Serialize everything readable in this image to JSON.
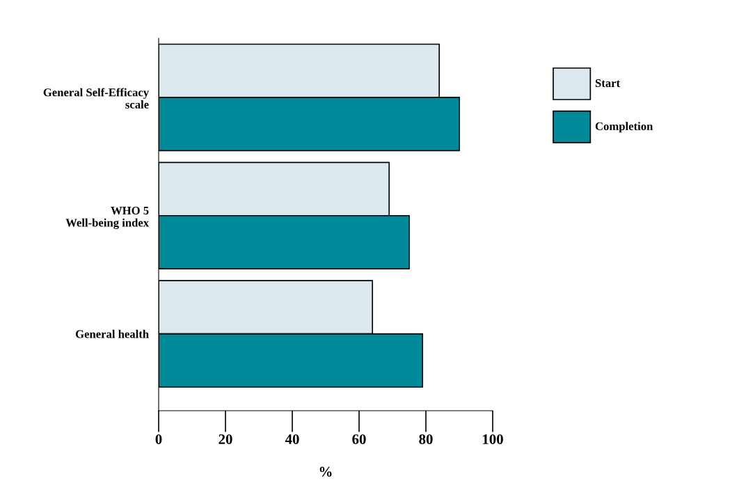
{
  "chart_data": {
    "type": "bar",
    "orientation": "horizontal",
    "xlabel": "%",
    "categories": [
      "General Self-Efficacy\nscale",
      "WHO 5\nWell-being index",
      "General health"
    ],
    "series": [
      {
        "name": "Start",
        "color": "#dce8ed",
        "values": [
          84,
          69,
          64
        ]
      },
      {
        "name": "Completion",
        "color": "#008a9a",
        "values": [
          90,
          75,
          79
        ]
      }
    ],
    "xlim": [
      0,
      100
    ],
    "xticks": [
      0,
      20,
      40,
      60,
      80,
      100
    ],
    "grid": false,
    "legend": "right"
  }
}
